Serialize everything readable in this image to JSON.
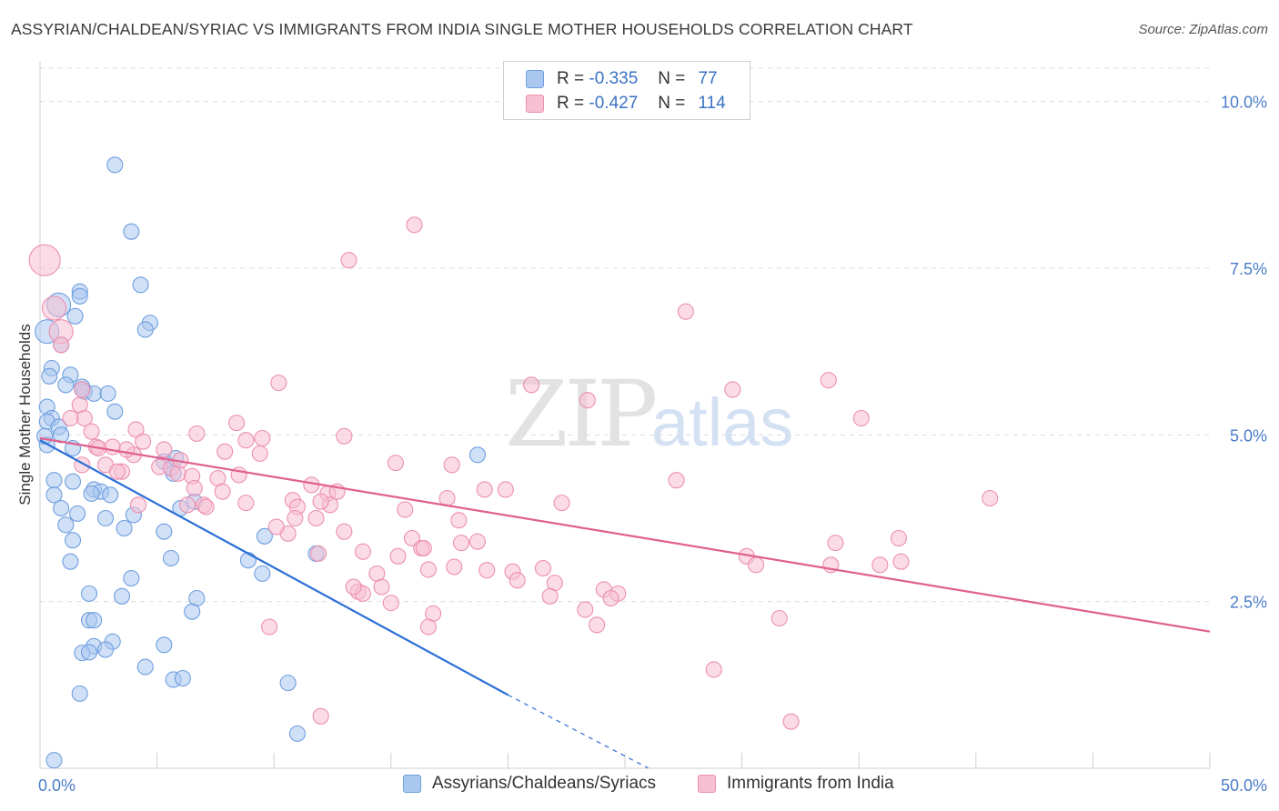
{
  "header": {
    "title": "ASSYRIAN/CHALDEAN/SYRIAC VS IMMIGRANTS FROM INDIA SINGLE MOTHER HOUSEHOLDS CORRELATION CHART",
    "source": "Source: ZipAtlas.com"
  },
  "legend": {
    "rows": [
      {
        "r_label": "R =",
        "r_value": "-0.335",
        "n_label": "N =",
        "n_value": "77"
      },
      {
        "r_label": "R =",
        "r_value": "-0.427",
        "n_label": "N =",
        "n_value": "114"
      }
    ]
  },
  "bottom_legend": {
    "series1": "Assyrians/Chaldeans/Syriacs",
    "series2": "Immigrants from India"
  },
  "watermark": {
    "zip": "ZIP",
    "atlas": "atlas"
  },
  "colors": {
    "blue_fill": "#aac7ef",
    "blue_stroke": "#6f9fe0",
    "blue_line": "#2b6fd6",
    "pink_fill": "#f7bfd2",
    "pink_stroke": "#ec8fb0",
    "pink_line": "#e0608e",
    "axis_text": "#4a7cc9",
    "grid": "#dcdcdc"
  },
  "chart_data": {
    "type": "scatter",
    "title": "ASSYRIAN/CHALDEAN/SYRIAC VS IMMIGRANTS FROM INDIA SINGLE MOTHER HOUSEHOLDS CORRELATION CHART",
    "xlabel": "",
    "ylabel": "Single Mother Households",
    "xlim": [
      0,
      50
    ],
    "ylim": [
      0,
      10.5
    ],
    "x_tick_labels": [
      "0.0%",
      "50.0%"
    ],
    "y_ticks": [
      2.5,
      5.0,
      7.5,
      10.0
    ],
    "y_tick_labels": [
      "2.5%",
      "5.0%",
      "7.5%",
      "10.0%"
    ],
    "grid": true,
    "legend_position": "top-center",
    "series": [
      {
        "name": "Assyrians/Chaldeans/Syriacs",
        "r": -0.335,
        "n": 77,
        "trend": {
          "x0": 0,
          "y0": 4.92,
          "x1": 20,
          "y1": 1.1,
          "dashed_to_x": 26,
          "dashed_to_y": 0.0
        },
        "points": [
          [
            3.2,
            9.05
          ],
          [
            3.9,
            8.05
          ],
          [
            4.3,
            7.25
          ],
          [
            1.7,
            7.15
          ],
          [
            1.7,
            7.08
          ],
          [
            0.8,
            6.95
          ],
          [
            1.5,
            6.78
          ],
          [
            4.7,
            6.68
          ],
          [
            4.5,
            6.58
          ],
          [
            0.3,
            6.55
          ],
          [
            0.9,
            6.35
          ],
          [
            0.5,
            6.0
          ],
          [
            0.4,
            5.88
          ],
          [
            1.3,
            5.9
          ],
          [
            1.1,
            5.75
          ],
          [
            1.8,
            5.72
          ],
          [
            1.9,
            5.65
          ],
          [
            2.3,
            5.62
          ],
          [
            2.9,
            5.62
          ],
          [
            0.3,
            5.42
          ],
          [
            0.5,
            5.25
          ],
          [
            3.2,
            5.35
          ],
          [
            0.3,
            5.2
          ],
          [
            0.8,
            5.12
          ],
          [
            0.9,
            5.0
          ],
          [
            0.3,
            4.85
          ],
          [
            1.4,
            4.8
          ],
          [
            1.8,
            5.68
          ],
          [
            5.3,
            4.6
          ],
          [
            5.6,
            4.5
          ],
          [
            5.7,
            4.42
          ],
          [
            5.8,
            4.65
          ],
          [
            6.6,
            4.0
          ],
          [
            6.0,
            3.9
          ],
          [
            0.6,
            4.32
          ],
          [
            1.4,
            4.3
          ],
          [
            2.3,
            4.18
          ],
          [
            2.6,
            4.15
          ],
          [
            0.6,
            4.1
          ],
          [
            2.2,
            4.12
          ],
          [
            0.9,
            3.9
          ],
          [
            1.6,
            3.82
          ],
          [
            2.8,
            3.75
          ],
          [
            4.0,
            3.8
          ],
          [
            1.1,
            3.65
          ],
          [
            3.6,
            3.6
          ],
          [
            5.3,
            3.55
          ],
          [
            9.6,
            3.48
          ],
          [
            1.4,
            3.42
          ],
          [
            1.3,
            3.1
          ],
          [
            5.6,
            3.15
          ],
          [
            8.9,
            3.12
          ],
          [
            11.8,
            3.22
          ],
          [
            18.7,
            4.7
          ],
          [
            9.5,
            2.92
          ],
          [
            3.9,
            2.85
          ],
          [
            2.1,
            2.62
          ],
          [
            3.5,
            2.58
          ],
          [
            6.7,
            2.55
          ],
          [
            6.5,
            2.35
          ],
          [
            2.1,
            2.22
          ],
          [
            2.3,
            2.22
          ],
          [
            3.1,
            1.9
          ],
          [
            2.3,
            1.83
          ],
          [
            2.8,
            1.78
          ],
          [
            1.8,
            1.73
          ],
          [
            2.1,
            1.74
          ],
          [
            5.3,
            1.85
          ],
          [
            4.5,
            1.52
          ],
          [
            5.7,
            1.33
          ],
          [
            6.1,
            1.35
          ],
          [
            10.6,
            1.28
          ],
          [
            1.7,
            1.12
          ],
          [
            11.0,
            0.52
          ],
          [
            0.6,
            0.12
          ],
          [
            0.2,
            4.98
          ],
          [
            3.0,
            4.1
          ]
        ]
      },
      {
        "name": "Immigrants from India",
        "r": -0.427,
        "n": 114,
        "trend": {
          "x0": 0,
          "y0": 4.95,
          "x1": 50,
          "y1": 2.05
        },
        "points": [
          [
            0.2,
            7.62
          ],
          [
            0.6,
            6.9
          ],
          [
            0.9,
            6.55
          ],
          [
            0.9,
            6.35
          ],
          [
            1.8,
            5.68
          ],
          [
            1.7,
            5.45
          ],
          [
            1.9,
            5.25
          ],
          [
            1.3,
            5.25
          ],
          [
            16.0,
            8.15
          ],
          [
            13.2,
            7.62
          ],
          [
            27.6,
            6.85
          ],
          [
            10.2,
            5.78
          ],
          [
            21.0,
            5.75
          ],
          [
            23.4,
            5.52
          ],
          [
            29.6,
            5.68
          ],
          [
            33.7,
            5.82
          ],
          [
            35.1,
            5.25
          ],
          [
            4.1,
            5.08
          ],
          [
            6.7,
            5.02
          ],
          [
            8.4,
            5.18
          ],
          [
            8.8,
            4.92
          ],
          [
            9.5,
            4.95
          ],
          [
            13.0,
            4.98
          ],
          [
            4.4,
            4.9
          ],
          [
            3.1,
            4.82
          ],
          [
            2.4,
            4.82
          ],
          [
            2.5,
            4.8
          ],
          [
            5.3,
            4.78
          ],
          [
            7.9,
            4.75
          ],
          [
            9.4,
            4.72
          ],
          [
            4.0,
            4.7
          ],
          [
            2.8,
            4.55
          ],
          [
            5.1,
            4.52
          ],
          [
            5.6,
            4.5
          ],
          [
            3.5,
            4.45
          ],
          [
            5.9,
            4.42
          ],
          [
            6.5,
            4.38
          ],
          [
            7.6,
            4.35
          ],
          [
            7.8,
            4.15
          ],
          [
            6.6,
            4.2
          ],
          [
            11.6,
            4.25
          ],
          [
            12.3,
            4.12
          ],
          [
            12.7,
            4.15
          ],
          [
            15.2,
            4.58
          ],
          [
            17.6,
            4.55
          ],
          [
            19.0,
            4.18
          ],
          [
            19.9,
            4.18
          ],
          [
            27.2,
            4.32
          ],
          [
            17.4,
            4.05
          ],
          [
            22.3,
            3.98
          ],
          [
            10.8,
            4.02
          ],
          [
            11.0,
            3.92
          ],
          [
            12.4,
            3.95
          ],
          [
            6.3,
            3.95
          ],
          [
            7.0,
            3.95
          ],
          [
            8.8,
            3.98
          ],
          [
            4.2,
            3.95
          ],
          [
            15.6,
            3.88
          ],
          [
            11.8,
            3.75
          ],
          [
            10.9,
            3.75
          ],
          [
            17.9,
            3.72
          ],
          [
            13.0,
            3.55
          ],
          [
            10.6,
            3.52
          ],
          [
            10.1,
            3.62
          ],
          [
            15.9,
            3.45
          ],
          [
            16.3,
            3.3
          ],
          [
            18.0,
            3.38
          ],
          [
            13.8,
            3.25
          ],
          [
            11.9,
            3.22
          ],
          [
            15.3,
            3.18
          ],
          [
            16.4,
            3.3
          ],
          [
            17.7,
            3.02
          ],
          [
            16.6,
            2.98
          ],
          [
            19.1,
            2.97
          ],
          [
            20.2,
            2.95
          ],
          [
            14.4,
            2.92
          ],
          [
            20.4,
            2.82
          ],
          [
            22.0,
            2.78
          ],
          [
            14.6,
            2.72
          ],
          [
            13.6,
            2.65
          ],
          [
            13.8,
            2.62
          ],
          [
            24.1,
            2.68
          ],
          [
            24.7,
            2.62
          ],
          [
            24.4,
            2.55
          ],
          [
            21.8,
            2.58
          ],
          [
            15.0,
            2.48
          ],
          [
            23.3,
            2.38
          ],
          [
            16.8,
            2.32
          ],
          [
            23.8,
            2.15
          ],
          [
            16.6,
            2.12
          ],
          [
            30.2,
            3.18
          ],
          [
            30.6,
            3.05
          ],
          [
            33.8,
            3.05
          ],
          [
            34.0,
            3.38
          ],
          [
            35.9,
            3.05
          ],
          [
            36.7,
            3.45
          ],
          [
            36.8,
            3.1
          ],
          [
            40.6,
            4.05
          ],
          [
            31.6,
            2.25
          ],
          [
            9.8,
            2.12
          ],
          [
            28.8,
            1.48
          ],
          [
            12.0,
            0.78
          ],
          [
            32.1,
            0.7
          ],
          [
            1.8,
            4.55
          ],
          [
            3.3,
            4.45
          ],
          [
            6.0,
            4.62
          ],
          [
            2.2,
            5.05
          ],
          [
            3.7,
            4.78
          ],
          [
            8.5,
            4.4
          ],
          [
            12.0,
            4.0
          ],
          [
            7.1,
            3.92
          ],
          [
            18.7,
            3.4
          ],
          [
            21.5,
            3.0
          ],
          [
            13.4,
            2.72
          ]
        ]
      }
    ]
  }
}
